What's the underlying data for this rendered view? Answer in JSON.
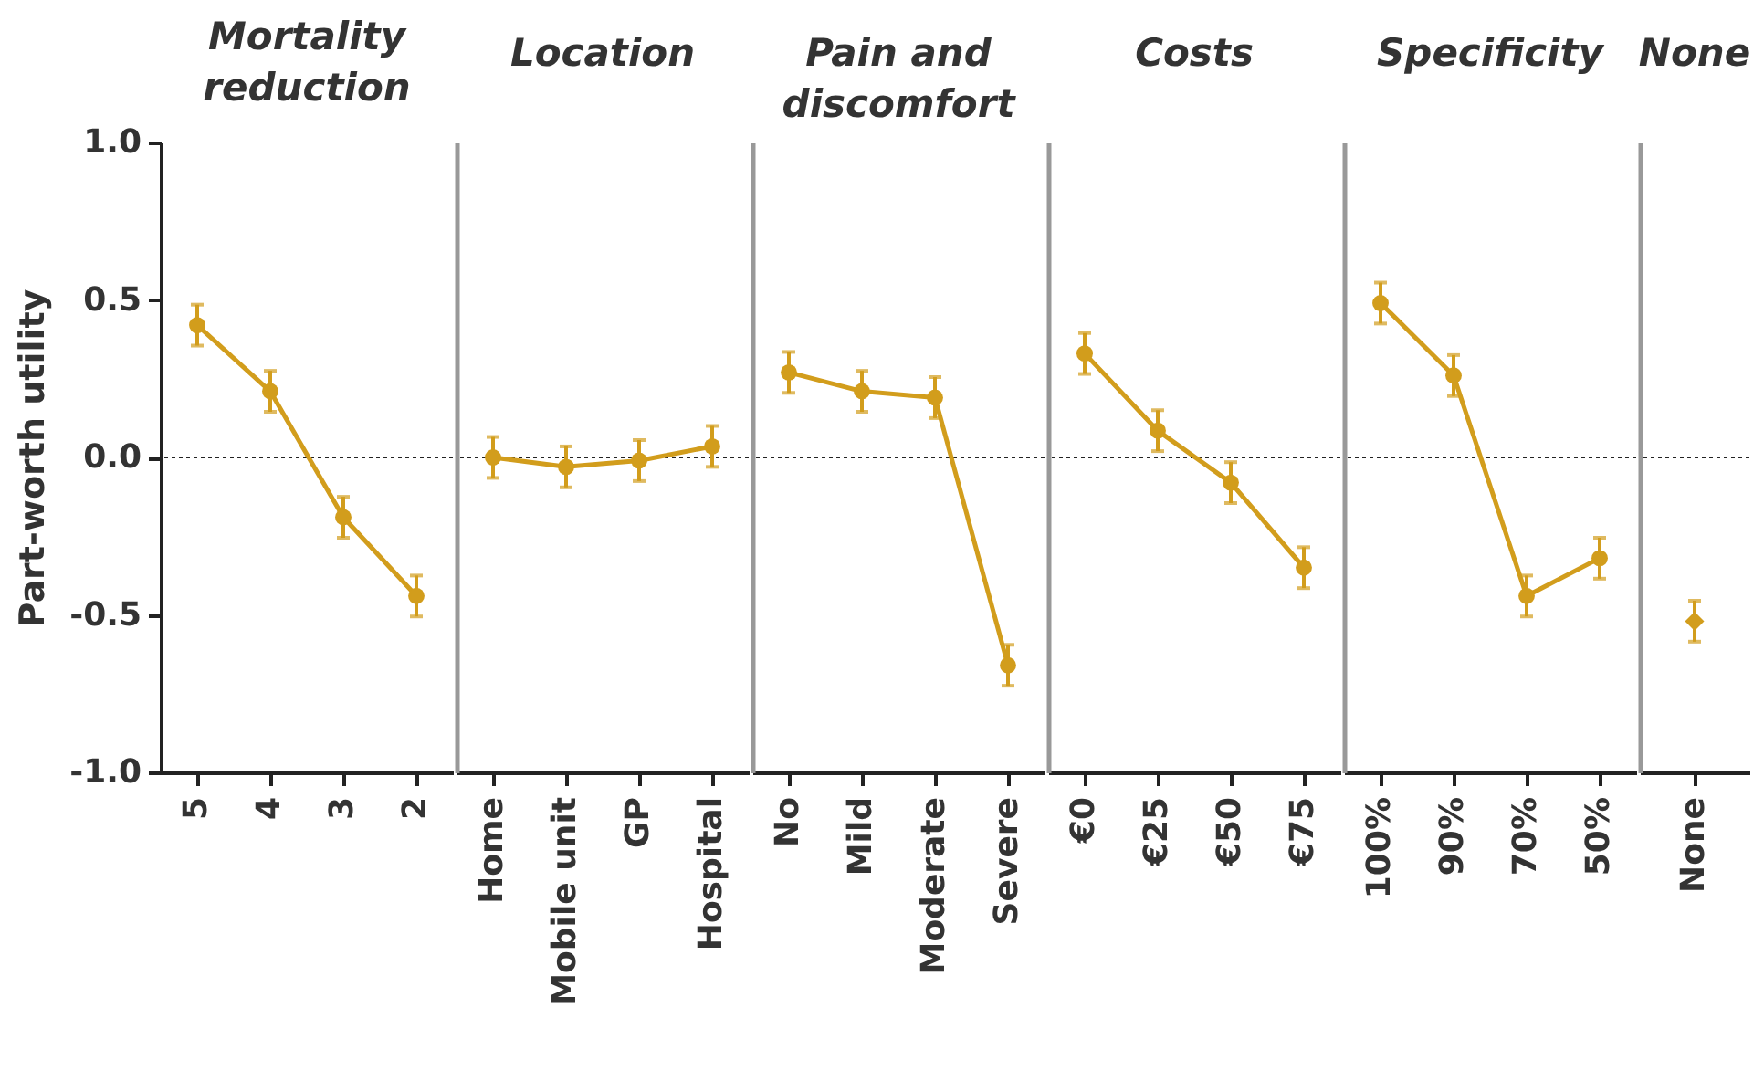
{
  "chart_data": [
    {
      "type": "line",
      "title": "Mortality reduction",
      "ylabel": "Part-worth utility",
      "categories": [
        "5",
        "4",
        "3",
        "2"
      ],
      "values": [
        0.42,
        0.21,
        -0.19,
        -0.44
      ],
      "errors": [
        0.065,
        0.065,
        0.065,
        0.065
      ],
      "color": "#d29d1c",
      "marker": "circle",
      "ylim": [
        -1,
        1
      ],
      "yticks": [
        {
          "value": -1,
          "label": "-1.0"
        },
        {
          "value": -0.5,
          "label": "-0.5"
        },
        {
          "value": 0,
          "label": "0.0"
        },
        {
          "value": 0.5,
          "label": "0.5"
        },
        {
          "value": 1,
          "label": "1.0"
        }
      ],
      "ref_lines": [
        {
          "axis": "y",
          "value": 0,
          "line_style": "dotted",
          "color": "#222222"
        }
      ]
    },
    {
      "type": "line",
      "title": "Location",
      "categories": [
        "Home",
        "Mobile unit",
        "GP",
        "Hospital"
      ],
      "values": [
        0.0,
        -0.03,
        -0.01,
        0.035
      ],
      "errors": [
        0.065,
        0.065,
        0.065,
        0.065
      ],
      "color": "#d29d1c",
      "marker": "circle",
      "ylim": [
        -1,
        1
      ],
      "tick_labels": "x",
      "ref_lines": [
        {
          "axis": "y",
          "value": 0,
          "line_style": "dotted",
          "color": "#222222"
        }
      ]
    },
    {
      "type": "line",
      "title": "Pain and discomfort",
      "categories": [
        "No",
        "Mild",
        "Moderate",
        "Severe"
      ],
      "values": [
        0.27,
        0.21,
        0.19,
        -0.66
      ],
      "errors": [
        0.065,
        0.065,
        0.065,
        0.065
      ],
      "color": "#d29d1c",
      "marker": "circle",
      "ylim": [
        -1,
        1
      ],
      "tick_labels": "x",
      "ref_lines": [
        {
          "axis": "y",
          "value": 0,
          "line_style": "dotted",
          "color": "#222222"
        }
      ]
    },
    {
      "type": "line",
      "title": "Costs",
      "categories": [
        "€0",
        "€25",
        "€50",
        "€75"
      ],
      "values": [
        0.33,
        0.085,
        -0.08,
        -0.35
      ],
      "errors": [
        0.065,
        0.065,
        0.065,
        0.065
      ],
      "color": "#d29d1c",
      "marker": "circle",
      "ylim": [
        -1,
        1
      ],
      "tick_labels": "x",
      "ref_lines": [
        {
          "axis": "y",
          "value": 0,
          "line_style": "dotted",
          "color": "#222222"
        }
      ]
    },
    {
      "type": "line",
      "title": "Specificity",
      "categories": [
        "100%",
        "90%",
        "70%",
        "50%"
      ],
      "values": [
        0.49,
        0.26,
        -0.44,
        -0.32
      ],
      "errors": [
        0.065,
        0.065,
        0.065,
        0.065
      ],
      "color": "#d29d1c",
      "marker": "circle",
      "ylim": [
        -1,
        1
      ],
      "tick_labels": "x",
      "ref_lines": [
        {
          "axis": "y",
          "value": 0,
          "line_style": "dotted",
          "color": "#222222"
        }
      ]
    },
    {
      "type": "scatter",
      "title": "None",
      "categories": [
        "None"
      ],
      "values": [
        -0.52
      ],
      "errors": [
        0.065
      ],
      "color": "#d29d1c",
      "marker": "diamond",
      "ylim": [
        -1,
        1
      ],
      "tick_labels": "x",
      "ref_lines": [
        {
          "axis": "y",
          "value": 0,
          "line_style": "dotted",
          "color": "#222222"
        }
      ]
    }
  ]
}
